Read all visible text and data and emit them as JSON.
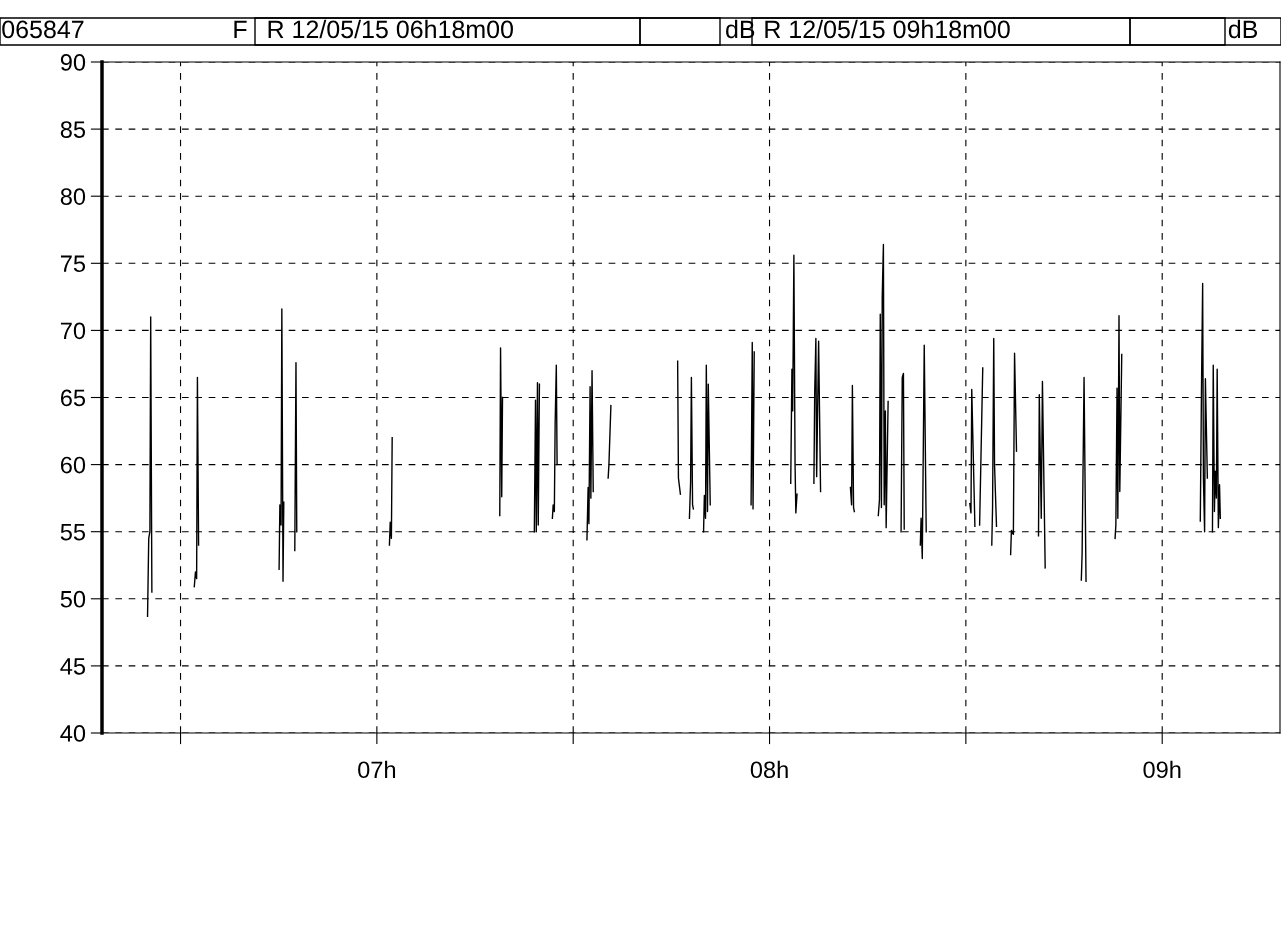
{
  "chart_data": {
    "type": "line",
    "annotations": [
      "065847",
      "F",
      "R 12/05/15 06h18m00",
      "dB",
      "R 12/05/15 09h18m00",
      "dB"
    ],
    "xlim": [
      6.3,
      9.3
    ],
    "xticks": [
      {
        "value": 6.5,
        "label": null
      },
      {
        "value": 7,
        "label": "07h"
      },
      {
        "value": 7.5,
        "label": null
      },
      {
        "value": 8,
        "label": "08h"
      },
      {
        "value": 8.5,
        "label": null
      },
      {
        "value": 9,
        "label": "09h"
      }
    ],
    "ylim": [
      40,
      90
    ],
    "yticks": [
      40,
      45,
      50,
      55,
      60,
      65,
      70,
      75,
      80,
      85,
      90
    ],
    "grid": true,
    "marker": "none",
    "line_style": "solid",
    "series": [
      {
        "color": "#000000",
        "x": [
          6.416,
          6.419,
          6.422,
          6.424,
          6.427,
          6.48,
          6.535,
          6.538,
          6.541,
          6.543,
          6.546,
          6.65,
          6.751,
          6.753,
          6.756,
          6.758,
          6.761,
          6.763,
          6.78,
          6.791,
          6.794,
          6.796,
          6.9,
          7.032,
          7.034,
          7.037,
          7.039,
          7.2,
          7.313,
          7.315,
          7.318,
          7.32,
          7.36,
          7.401,
          7.404,
          7.406,
          7.409,
          7.411,
          7.414,
          7.43,
          7.447,
          7.449,
          7.452,
          7.454,
          7.457,
          7.459,
          7.5,
          7.535,
          7.538,
          7.54,
          7.543,
          7.545,
          7.548,
          7.551,
          7.57,
          7.589,
          7.591,
          7.596,
          7.7,
          7.766,
          7.768,
          7.773,
          7.785,
          7.796,
          7.799,
          7.801,
          7.804,
          7.806,
          7.82,
          7.832,
          7.834,
          7.837,
          7.839,
          7.842,
          7.844,
          7.849,
          7.9,
          7.953,
          7.956,
          7.958,
          7.961,
          8.0,
          8.054,
          8.057,
          8.059,
          8.062,
          8.065,
          8.067,
          8.07,
          8.09,
          8.113,
          8.115,
          8.118,
          8.12,
          8.125,
          8.13,
          8.17,
          8.206,
          8.209,
          8.211,
          8.214,
          8.216,
          8.25,
          8.277,
          8.28,
          8.282,
          8.285,
          8.287,
          8.29,
          8.292,
          8.295,
          8.297,
          8.302,
          8.32,
          8.335,
          8.338,
          8.341,
          8.343,
          8.36,
          8.384,
          8.386,
          8.389,
          8.394,
          8.399,
          8.45,
          8.51,
          8.513,
          8.515,
          8.523,
          8.53,
          8.535,
          8.543,
          8.555,
          8.566,
          8.568,
          8.571,
          8.573,
          8.578,
          8.6,
          8.614,
          8.616,
          8.621,
          8.624,
          8.629,
          8.66,
          8.685,
          8.687,
          8.692,
          8.695,
          8.702,
          8.75,
          8.794,
          8.796,
          8.801,
          8.806,
          8.84,
          8.88,
          8.882,
          8.885,
          8.887,
          8.89,
          8.892,
          8.897,
          9.0,
          9.097,
          9.1,
          9.103,
          9.105,
          9.108,
          9.11,
          9.115,
          9.12,
          9.128,
          9.13,
          9.133,
          9.135,
          9.138,
          9.14,
          9.143,
          9.146,
          9.148
        ],
        "values": [
          48.7,
          54.5,
          55,
          71,
          50.5,
          null,
          50.9,
          52,
          51.5,
          66.5,
          54,
          null,
          52.2,
          57,
          55.5,
          71.6,
          51.3,
          57.2,
          null,
          53.6,
          67.6,
          55,
          null,
          54,
          55.7,
          54.5,
          62,
          null,
          56.2,
          68.7,
          57.6,
          65,
          null,
          55,
          64.8,
          55,
          66.1,
          55.5,
          66,
          null,
          56,
          57,
          56.5,
          63,
          67.4,
          60,
          null,
          54.4,
          58.3,
          55.6,
          65.8,
          57.5,
          67,
          58,
          null,
          59,
          60,
          64.4,
          null,
          67.7,
          59,
          57.8,
          null,
          56,
          58.7,
          66.5,
          57,
          56.7,
          null,
          55,
          57.7,
          56,
          67.4,
          56.5,
          66,
          57,
          null,
          57,
          69.1,
          56.7,
          68.4,
          null,
          58.6,
          67.1,
          64,
          75.6,
          60,
          56.4,
          57.8,
          null,
          58.6,
          65.3,
          69.4,
          59.1,
          69.2,
          58,
          null,
          58.3,
          57,
          65.9,
          56.8,
          56.5,
          null,
          56.2,
          57.4,
          71.2,
          56.8,
          72.5,
          76.4,
          57,
          64,
          55.3,
          64.7,
          null,
          55,
          66.5,
          66.8,
          55.2,
          null,
          54,
          56,
          53,
          68.9,
          55,
          null,
          57.1,
          56.4,
          65.6,
          55.4,
          null,
          55.5,
          67.2,
          null,
          54,
          56.8,
          69.4,
          60,
          55.4,
          null,
          53.3,
          55.1,
          54.8,
          68.3,
          61,
          null,
          54.7,
          65.2,
          56,
          66.2,
          52.3,
          null,
          51.4,
          53.3,
          66.5,
          51.3,
          null,
          54.5,
          55.5,
          65.7,
          56,
          71.1,
          58,
          68.2,
          null,
          55.8,
          65.5,
          73.5,
          59,
          55,
          66.4,
          59,
          null,
          55,
          67.4,
          56.5,
          59.5,
          57.5,
          67.1,
          55.3,
          58.5,
          56
        ]
      }
    ]
  }
}
